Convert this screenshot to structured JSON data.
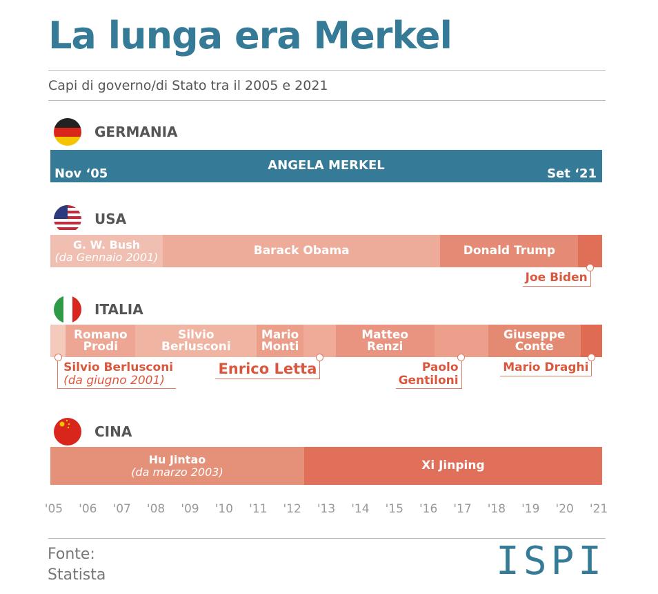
{
  "chart_data": {
    "type": "timeline",
    "title": "La lunga era Merkel",
    "subtitle": "Capi di governo/di Stato tra il 2005 e 2021",
    "xlim": [
      2004.9,
      2021.1
    ],
    "xticks": [
      {
        "value": 2005,
        "label": "'05"
      },
      {
        "value": 2006,
        "label": "'06"
      },
      {
        "value": 2007,
        "label": "'07"
      },
      {
        "value": 2008,
        "label": "'08"
      },
      {
        "value": 2009,
        "label": "'09"
      },
      {
        "value": 2010,
        "label": "'10"
      },
      {
        "value": 2011,
        "label": "'11"
      },
      {
        "value": 2012,
        "label": "'12"
      },
      {
        "value": 2013,
        "label": "'13"
      },
      {
        "value": 2014,
        "label": "'14"
      },
      {
        "value": 2015,
        "label": "'15"
      },
      {
        "value": 2016,
        "label": "'16"
      },
      {
        "value": 2017,
        "label": "'17"
      },
      {
        "value": 2018,
        "label": "'18"
      },
      {
        "value": 2019,
        "label": "'19"
      },
      {
        "value": 2020,
        "label": "'20"
      },
      {
        "value": 2021,
        "label": "'21"
      }
    ],
    "countries": [
      {
        "name": "GERMANIA",
        "segments": [
          {
            "name": "ANGELA MERKEL",
            "start": 2004.9,
            "end": 2021.1,
            "color": "#357a96",
            "start_label": "Nov ‘05",
            "end_label": "Set ‘21"
          }
        ]
      },
      {
        "name": "USA",
        "segments": [
          {
            "name": "G. W. Bush",
            "note": "(da Gennaio 2001)",
            "start": 2004.9,
            "end": 2008.2,
            "color": "#f1bfb1"
          },
          {
            "name": "Barack Obama",
            "start": 2008.2,
            "end": 2016.35,
            "color": "#edab99"
          },
          {
            "name": "Donald Trump",
            "start": 2016.35,
            "end": 2020.4,
            "color": "#e58b75"
          },
          {
            "name": "Joe Biden",
            "start": 2020.4,
            "end": 2021.1,
            "color": "#e06f57",
            "callout": "left"
          }
        ]
      },
      {
        "name": "ITALIA",
        "segments": [
          {
            "name": "Silvio Berlusconi",
            "note": "(da giugno 2001)",
            "start": 2004.9,
            "end": 2005.35,
            "color": "#f4cabd",
            "callout": "right"
          },
          {
            "name": "Romano\nProdi",
            "start": 2005.35,
            "end": 2007.4,
            "color": "#eca693"
          },
          {
            "name": "Silvio\nBerlusconi",
            "start": 2007.4,
            "end": 2010.96,
            "color": "#f0b4a3"
          },
          {
            "name": "Mario\nMonti",
            "start": 2010.96,
            "end": 2012.33,
            "color": "#eb9f8a"
          },
          {
            "name": "Enrico Letta",
            "start": 2012.33,
            "end": 2013.28,
            "color": "#efab98",
            "callout": "left"
          },
          {
            "name": "Matteo\nRenzi",
            "start": 2013.28,
            "end": 2016.17,
            "color": "#e89480"
          },
          {
            "name": "Paolo\nGentiloni",
            "start": 2016.17,
            "end": 2017.75,
            "color": "#eca08b",
            "callout": "left"
          },
          {
            "name": "Giuseppe\nConte",
            "start": 2017.75,
            "end": 2020.47,
            "color": "#e58a72"
          },
          {
            "name": "Mario Draghi",
            "start": 2020.47,
            "end": 2021.1,
            "color": "#df6c52",
            "callout": "left"
          }
        ]
      },
      {
        "name": "CINA",
        "segments": [
          {
            "name": "Hu Jintao",
            "note": "(da marzo 2003)",
            "start": 2004.9,
            "end": 2012.35,
            "color": "#e59179"
          },
          {
            "name": "Xi Jinping",
            "start": 2012.35,
            "end": 2021.1,
            "color": "#e0705a"
          }
        ]
      }
    ]
  },
  "source": {
    "label": "Fonte:",
    "name": "Statista"
  },
  "logo": "ISPI"
}
